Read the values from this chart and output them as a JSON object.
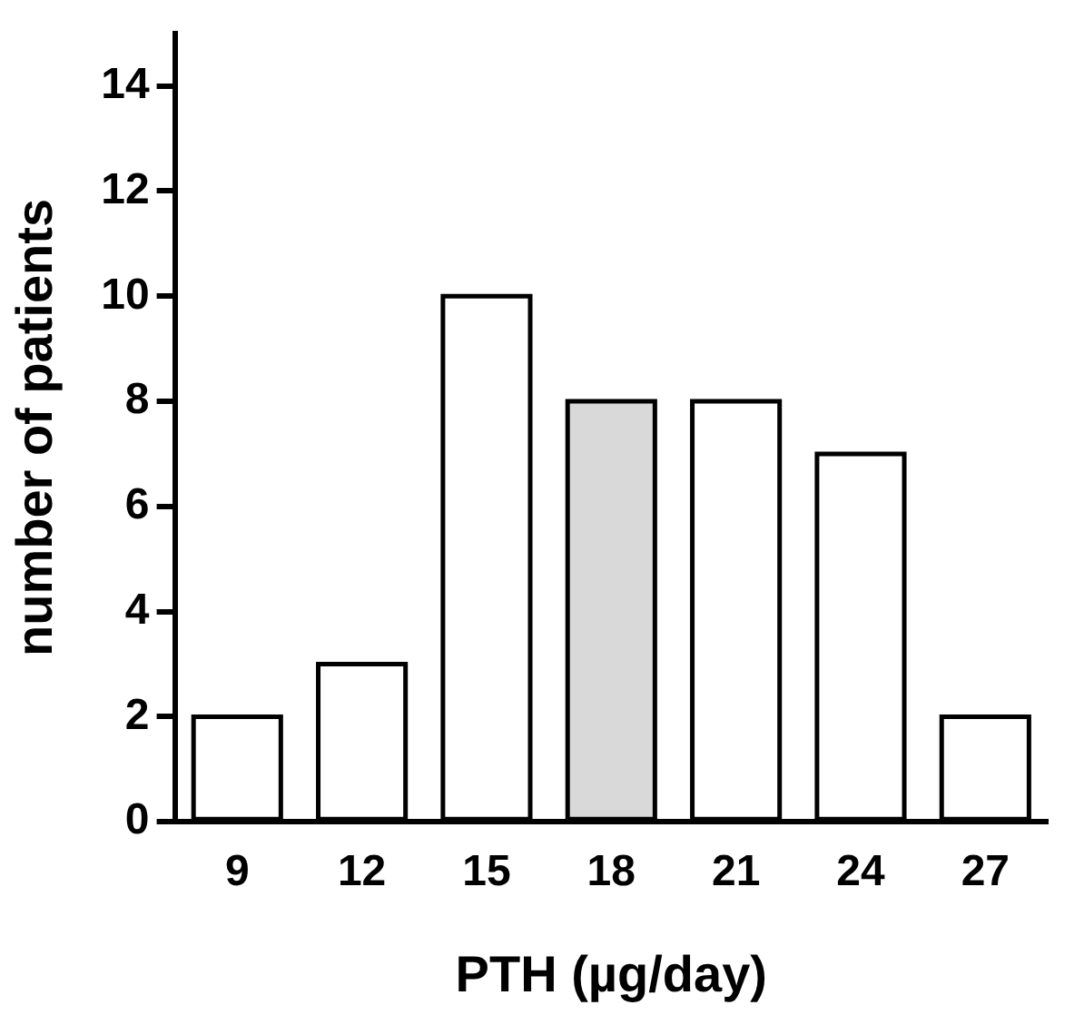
{
  "chart_data": {
    "type": "bar",
    "xlabel": "PTH (µg/day)",
    "ylabel": "number of patients",
    "categories": [
      "9",
      "12",
      "15",
      "18",
      "21",
      "24",
      "27"
    ],
    "values": [
      2,
      3,
      10,
      8,
      8,
      7,
      2
    ],
    "colors": [
      "#ffffff",
      "#ffffff",
      "#ffffff",
      "#d9d9d9",
      "#ffffff",
      "#ffffff",
      "#ffffff"
    ],
    "ylim": [
      0,
      15
    ],
    "yticks": [
      0,
      2,
      4,
      6,
      8,
      10,
      12,
      14
    ]
  }
}
